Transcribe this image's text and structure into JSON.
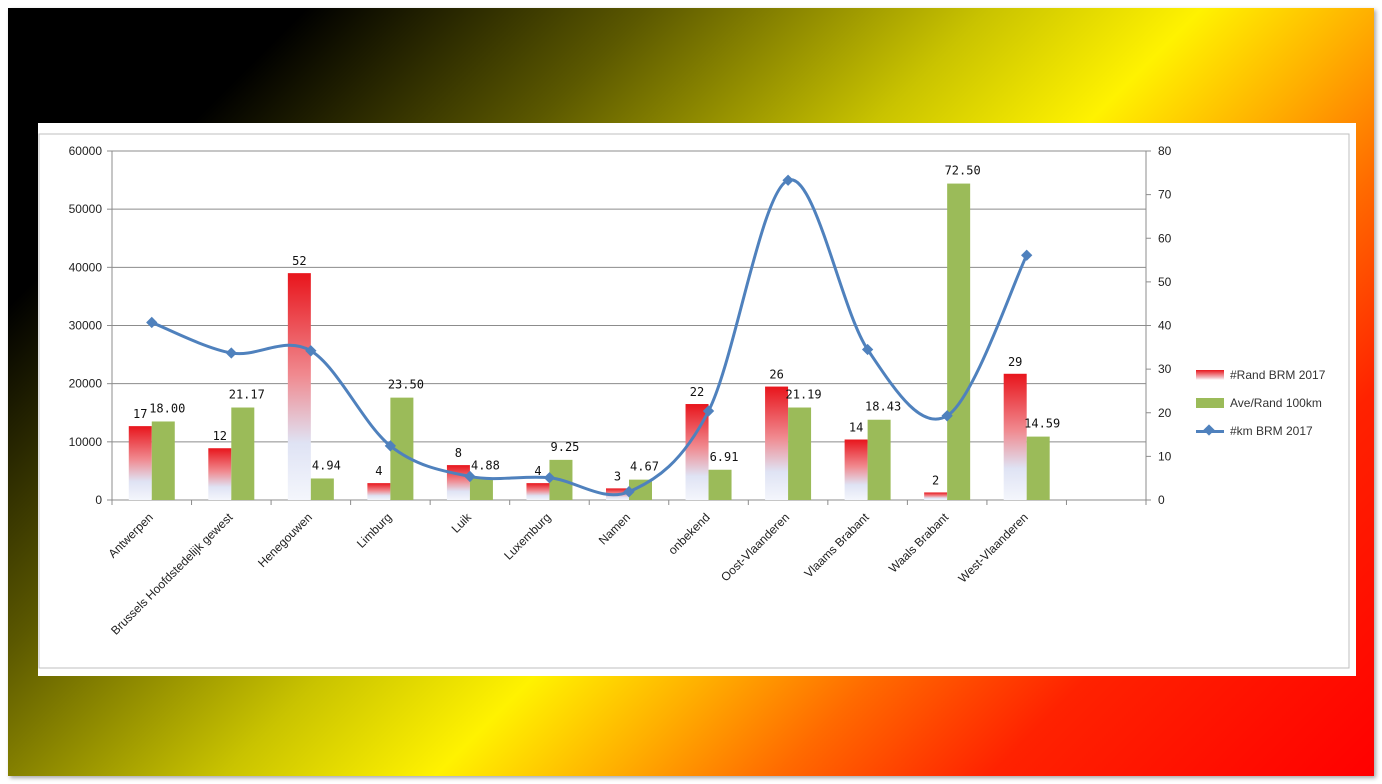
{
  "chart_data": {
    "type": "bar",
    "categories": [
      "Antwerpen",
      "Brussels Hoofdstedelijk gewest",
      "Henegouwen",
      "Limburg",
      "Luik",
      "Luxemburg",
      "Namen",
      "onbekend",
      "Oost-Vlaanderen",
      "Vlaams Brabant",
      "Waals Brabant",
      "West-Vlaanderen"
    ],
    "left_axis": {
      "min": 0,
      "max": 60000,
      "ticks": [
        "0",
        "10000",
        "20000",
        "30000",
        "40000",
        "50000",
        "60000"
      ]
    },
    "right_axis": {
      "min": 0,
      "max": 80,
      "ticks": [
        "0",
        "10",
        "20",
        "30",
        "40",
        "50",
        "60",
        "70",
        "80"
      ]
    },
    "grid": true,
    "legend_position": "right",
    "series": [
      {
        "name": "#Rand BRM 2017",
        "type": "bar",
        "axis": "left",
        "color": "#e8151c",
        "values": [
          12700,
          8900,
          39000,
          2900,
          6000,
          2900,
          2000,
          16500,
          19500,
          10400,
          1300,
          21700
        ],
        "labels": [
          "17",
          "12",
          "52",
          "4",
          "8",
          "4",
          "3",
          "22",
          "26",
          "14",
          "2",
          "29"
        ]
      },
      {
        "name": "Ave/Rand 100km",
        "type": "bar",
        "axis": "left",
        "color": "#9bbb59",
        "values": [
          13500,
          15900,
          3700,
          17600,
          3700,
          6900,
          3500,
          5200,
          15900,
          13800,
          54400,
          10900
        ],
        "labels": [
          "18.00",
          "21.17",
          "4.94",
          "23.50",
          "4.88",
          "9.25",
          "4.67",
          "6.91",
          "21.19",
          "18.43",
          "72.50",
          "14.59"
        ]
      },
      {
        "name": "#km BRM 2017",
        "type": "line",
        "axis": "right",
        "color": "#4f81bd",
        "values": [
          40.7,
          33.7,
          34.2,
          12.4,
          5.4,
          5.1,
          1.9,
          20.4,
          73.3,
          34.5,
          19.3,
          56.1
        ]
      }
    ]
  }
}
